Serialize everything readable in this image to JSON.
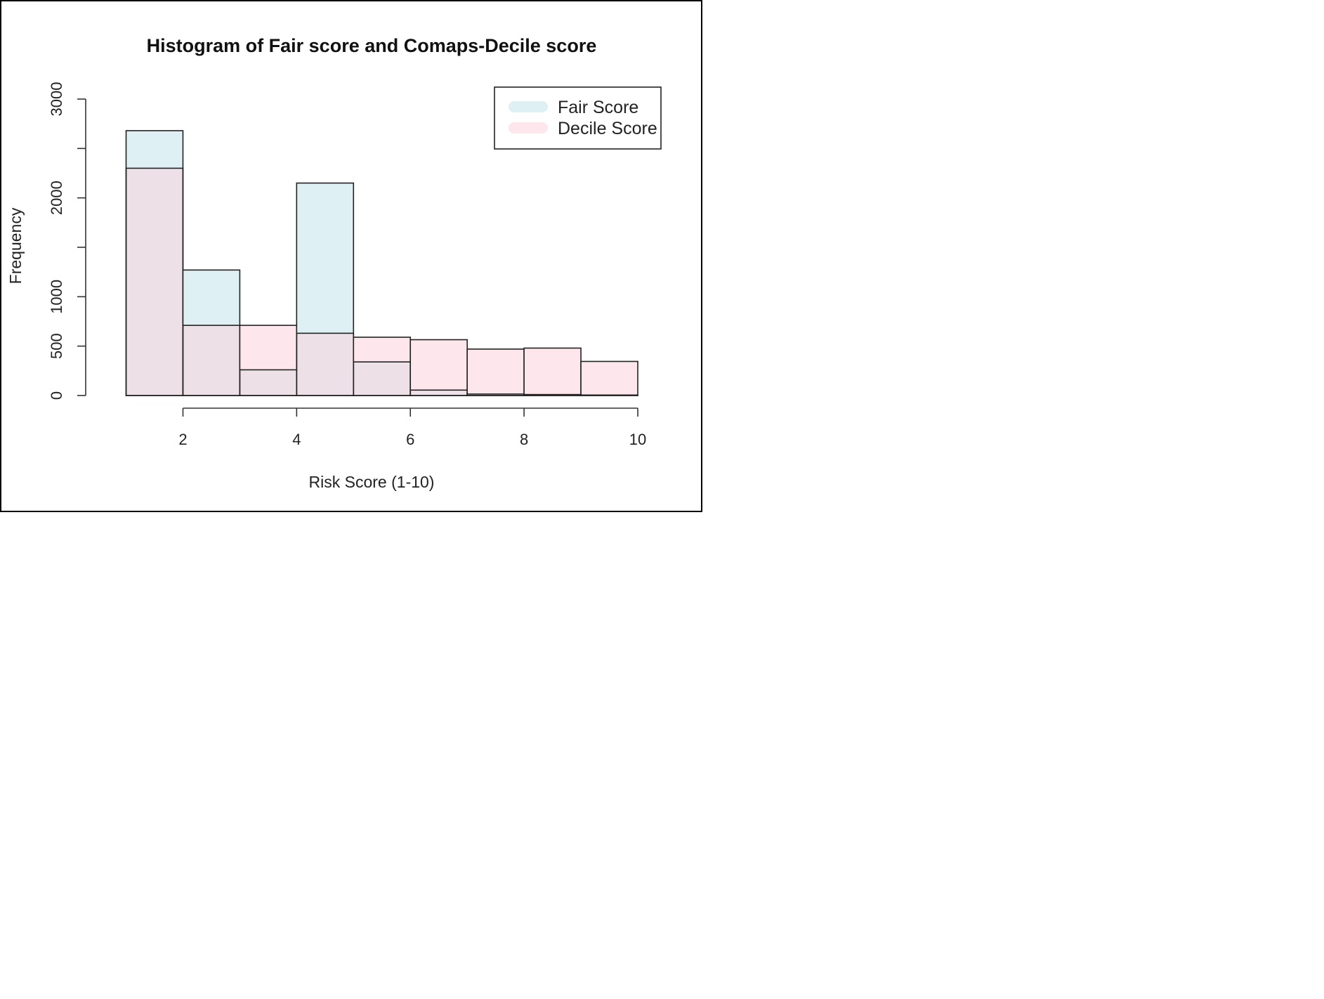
{
  "chart_data": {
    "type": "bar",
    "title": "Histogram of Fair score and Comaps-Decile score",
    "xlabel": "Risk Score (1-10)",
    "ylabel": "Frequency",
    "xlim": [
      0.66,
      10
    ],
    "ylim": [
      0,
      3000
    ],
    "x_ticks": [
      2,
      4,
      6,
      8,
      10
    ],
    "y_ticks": [
      0,
      500,
      1000,
      2000,
      3000
    ],
    "y_minor_ticks": [
      1500,
      2500
    ],
    "bins": [
      [
        1,
        2
      ],
      [
        2,
        3
      ],
      [
        3,
        4
      ],
      [
        4,
        5
      ],
      [
        5,
        6
      ],
      [
        6,
        7
      ],
      [
        7,
        8
      ],
      [
        8,
        9
      ],
      [
        9,
        10
      ]
    ],
    "series": [
      {
        "name": "Fair Score",
        "color": "#dff0f4",
        "values": [
          2680,
          1270,
          260,
          2150,
          340,
          55,
          15,
          10,
          5
        ]
      },
      {
        "name": "Decile Score",
        "color": "#fde6ec",
        "values": [
          2300,
          710,
          710,
          630,
          590,
          565,
          470,
          480,
          345
        ]
      }
    ],
    "overlap_color": "#ede1e7",
    "legend": {
      "position": "top-right",
      "items": [
        "Fair Score",
        "Decile Score"
      ]
    },
    "grid": false
  }
}
